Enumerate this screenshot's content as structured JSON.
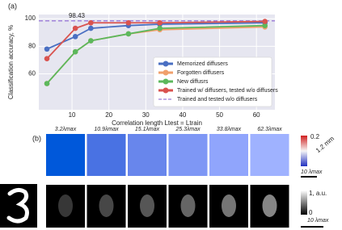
{
  "chart_data": {
    "type": "line",
    "panel_label": "(a)",
    "y_label": "Classification accuracy, %",
    "x_label": "Correlation length Ltest = Ltrain",
    "x": [
      3.2,
      10.9,
      15.1,
      25.3,
      33.8,
      62.3
    ],
    "series": [
      {
        "name": "Memorized diffusers",
        "color": "#4a6fc2",
        "values": [
          78,
          87,
          93,
          95,
          96,
          97
        ]
      },
      {
        "name": "Forgotten diffusers",
        "color": "#f0a06c",
        "values": [
          53,
          76,
          84,
          89,
          92,
          94
        ]
      },
      {
        "name": "New diffusrs",
        "color": "#5cb85c",
        "values": [
          53,
          76,
          84,
          89,
          93,
          95
        ]
      },
      {
        "name": "Trained w/ diffusers, tested w/o diffusers",
        "color": "#d9534f",
        "values": [
          71,
          93,
          97,
          97,
          97,
          98
        ]
      }
    ],
    "reference_line": {
      "name": "Trained and tested w/o diffusers",
      "value": 98.43,
      "color": "#9a7ad8"
    },
    "xlim": [
      1,
      65
    ],
    "xticks": [
      10,
      20,
      30,
      40,
      50,
      60
    ],
    "ylim": [
      34,
      103
    ],
    "yticks": [
      60,
      80,
      100
    ],
    "grid": true,
    "legend": "lower right"
  },
  "panel_b": {
    "label": "(b)",
    "columns": [
      "3.2λmax",
      "10.9λmax",
      "15.1λmax",
      "25.3λmax",
      "33.8λmax",
      "62.3λmax"
    ],
    "phase_colorbar": {
      "min": "0.2",
      "max": "1.2 mm",
      "scale": "10 λmax"
    },
    "intensity_colorbar": {
      "max": "1, a.u.",
      "min": "0",
      "scale": "10 λmax"
    }
  }
}
